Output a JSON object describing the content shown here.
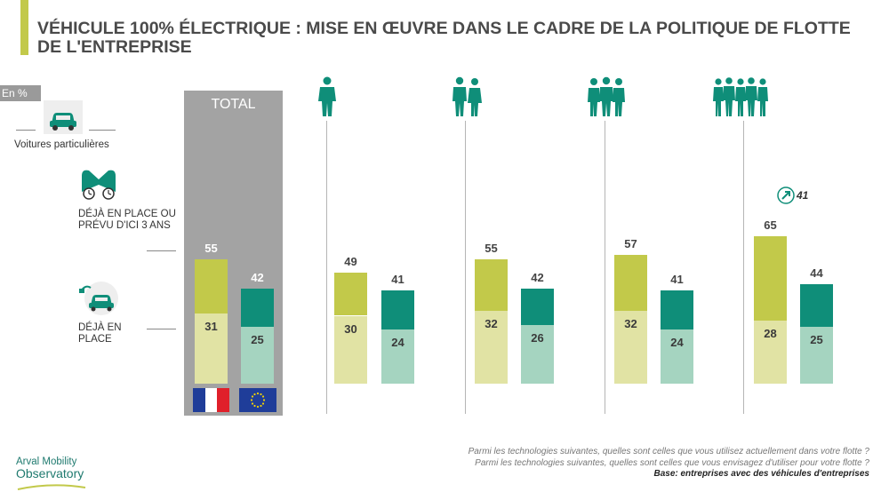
{
  "title": "VÉHICULE 100% ÉLECTRIQUE : MISE EN ŒUVRE DANS LE CADRE DE LA POLITIQUE DE FLOTTE DE L'ENTREPRISE",
  "unit_label": "En %",
  "legend": {
    "vehicle_type": "Voitures particulières",
    "planned": "DÉJÀ EN PLACE OU PRÉVU D'ICI 3 ANS",
    "current": "DÉJÀ EN PLACE"
  },
  "total_label": "TOTAL",
  "colors": {
    "lime_dark": "#c2c94a",
    "lime_light": "#e1e3a4",
    "teal_dark": "#0f8e79",
    "teal_light": "#a5d4c0",
    "grey_panel": "#a3a3a3",
    "accent": "#c2c94a"
  },
  "chart_data": {
    "type": "bar",
    "stacked": true,
    "unit": "%",
    "groups": [
      {
        "flag": "france-flag-icon",
        "bars": [
          {
            "region": "france-flag-icon",
            "total": 55,
            "current": 31
          },
          {
            "region": "eu-flag-icon",
            "total": 42,
            "current": 25
          }
        ]
      },
      {
        "icon": "person-single-icon",
        "bars": [
          {
            "total": 49,
            "current": 30
          },
          {
            "total": 41,
            "current": 24
          }
        ]
      },
      {
        "icon": "person-pair-icon",
        "bars": [
          {
            "total": 55,
            "current": 32
          },
          {
            "total": 42,
            "current": 26
          }
        ]
      },
      {
        "icon": "person-group-small-icon",
        "bars": [
          {
            "total": 57,
            "current": 32
          },
          {
            "total": 41,
            "current": 24
          }
        ]
      },
      {
        "icon": "person-group-large-icon",
        "bars": [
          {
            "total": 65,
            "current": 28,
            "trend_value": 41
          },
          {
            "total": 44,
            "current": 25
          }
        ]
      }
    ]
  },
  "footer": {
    "q1": "Parmi les technologies suivantes, quelles sont celles que vous utilisez actuellement dans votre flotte ?",
    "q2": "Parmi les technologies suivantes, quelles sont celles que vous envisagez d'utiliser pour votre flotte ?",
    "base": "Base: entreprises avec des véhicules d'entreprises"
  },
  "logo": {
    "line1": "Arval Mobility",
    "line2": "Observatory"
  }
}
